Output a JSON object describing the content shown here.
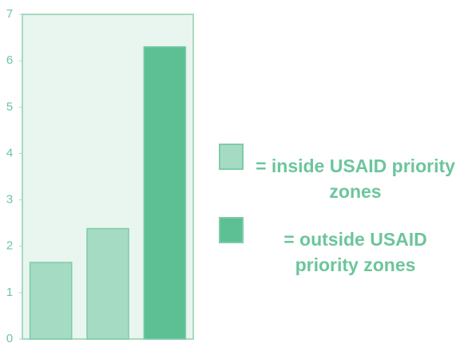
{
  "chart_data": {
    "type": "bar",
    "categories": [
      null,
      null,
      null
    ],
    "series": [
      {
        "name": "= inside USAID priority zones",
        "color": "#a6dbc3",
        "values": [
          1.65,
          2.38,
          null
        ]
      },
      {
        "name": "= outside USAID priority zones",
        "color": "#5dbf94",
        "values": [
          null,
          null,
          6.3
        ]
      }
    ],
    "ylim": [
      0,
      7
    ],
    "yticks": [
      0,
      1,
      2,
      3,
      4,
      5,
      6,
      7
    ],
    "grid": false
  }
}
